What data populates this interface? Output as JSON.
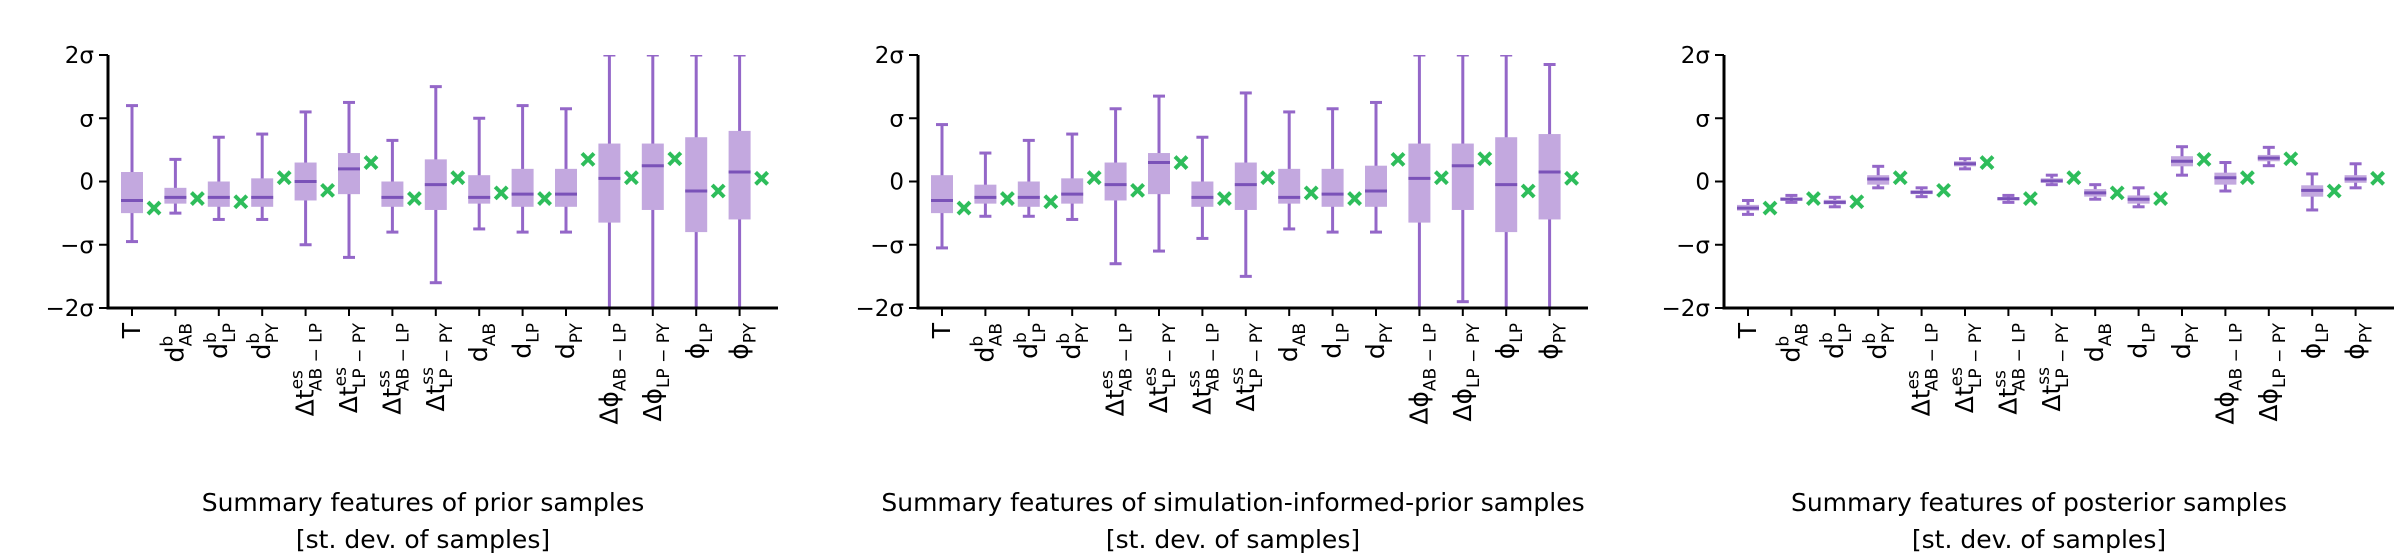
{
  "y_tick_labels": [
    "2σ",
    "σ",
    "0",
    "−σ",
    "−2σ"
  ],
  "x_tick_labels": [
    {
      "base": "T",
      "sup": "",
      "sub": ""
    },
    {
      "base": "d",
      "sup": "b",
      "sub": "AB"
    },
    {
      "base": "d",
      "sup": "b",
      "sub": "LP"
    },
    {
      "base": "d",
      "sup": "b",
      "sub": "PY"
    },
    {
      "base": "Δt",
      "sup": "es",
      "sub": "AB − LP"
    },
    {
      "base": "Δt",
      "sup": "es",
      "sub": "LP − PY"
    },
    {
      "base": "Δt",
      "sup": "ss",
      "sub": "AB − LP"
    },
    {
      "base": "Δt",
      "sup": "ss",
      "sub": "LP − PY"
    },
    {
      "base": "d",
      "sup": "",
      "sub": "AB"
    },
    {
      "base": "d",
      "sup": "",
      "sub": "LP"
    },
    {
      "base": "d",
      "sup": "",
      "sub": "PY"
    },
    {
      "base": "Δϕ",
      "sup": "",
      "sub": "AB − LP"
    },
    {
      "base": "Δϕ",
      "sup": "",
      "sub": "LP − PY"
    },
    {
      "base": "ϕ",
      "sup": "",
      "sub": "LP"
    },
    {
      "base": "ϕ",
      "sup": "",
      "sub": "PY"
    }
  ],
  "colors": {
    "box_fill": "#c3a8df",
    "whisker": "#9467c8",
    "median": "#7a52b8",
    "marker": "#2ebd5b",
    "axis": "#000000",
    "text": "#000000"
  },
  "chart_data": [
    {
      "type": "box",
      "title": "Summary features of prior samples",
      "subtitle": "[st. dev. of samples]",
      "ylim": [
        -2,
        2
      ],
      "whisker_low": [
        -0.95,
        -0.5,
        -0.6,
        -0.6,
        -1.0,
        -1.2,
        -0.8,
        -1.6,
        -0.75,
        -0.8,
        -0.8,
        -2.0,
        -2.0,
        -2.0,
        -2.0
      ],
      "q1": [
        -0.5,
        -0.35,
        -0.4,
        -0.4,
        -0.3,
        -0.2,
        -0.4,
        -0.45,
        -0.35,
        -0.4,
        -0.4,
        -0.65,
        -0.45,
        -0.8,
        -0.6
      ],
      "median": [
        -0.3,
        -0.25,
        -0.25,
        -0.25,
        0.0,
        0.2,
        -0.25,
        -0.05,
        -0.25,
        -0.2,
        -0.2,
        0.05,
        0.25,
        -0.15,
        0.15
      ],
      "q3": [
        0.15,
        -0.1,
        0.0,
        0.05,
        0.3,
        0.45,
        0.0,
        0.35,
        0.1,
        0.2,
        0.2,
        0.6,
        0.6,
        0.7,
        0.8
      ],
      "whisker_high": [
        1.2,
        0.35,
        0.7,
        0.75,
        1.1,
        1.25,
        0.65,
        1.5,
        1.0,
        1.2,
        1.15,
        2.0,
        2.0,
        2.0,
        2.0
      ],
      "observed": [
        -0.42,
        -0.27,
        -0.32,
        0.06,
        -0.14,
        0.3,
        -0.27,
        0.06,
        -0.18,
        -0.27,
        0.35,
        0.06,
        0.36,
        -0.15,
        0.05
      ]
    },
    {
      "type": "box",
      "title": "Summary features of simulation-informed-prior samples",
      "subtitle": "[st. dev. of samples]",
      "ylim": [
        -2,
        2
      ],
      "whisker_low": [
        -1.05,
        -0.55,
        -0.55,
        -0.6,
        -1.3,
        -1.1,
        -0.9,
        -1.5,
        -0.75,
        -0.8,
        -0.8,
        -2.0,
        -1.9,
        -2.0,
        -2.0
      ],
      "q1": [
        -0.5,
        -0.35,
        -0.4,
        -0.35,
        -0.3,
        -0.2,
        -0.4,
        -0.45,
        -0.35,
        -0.4,
        -0.4,
        -0.65,
        -0.45,
        -0.8,
        -0.6
      ],
      "median": [
        -0.3,
        -0.25,
        -0.25,
        -0.2,
        -0.05,
        0.3,
        -0.25,
        -0.05,
        -0.25,
        -0.2,
        -0.15,
        0.05,
        0.25,
        -0.05,
        0.15
      ],
      "q3": [
        0.1,
        -0.05,
        0.0,
        0.05,
        0.3,
        0.45,
        0.0,
        0.3,
        0.2,
        0.2,
        0.25,
        0.6,
        0.6,
        0.7,
        0.75
      ],
      "whisker_high": [
        0.9,
        0.45,
        0.65,
        0.75,
        1.15,
        1.35,
        0.7,
        1.4,
        1.1,
        1.15,
        1.25,
        2.0,
        2.0,
        2.0,
        1.85
      ],
      "observed": [
        -0.42,
        -0.27,
        -0.32,
        0.06,
        -0.14,
        0.3,
        -0.27,
        0.06,
        -0.18,
        -0.27,
        0.35,
        0.06,
        0.36,
        -0.15,
        0.05
      ]
    },
    {
      "type": "box",
      "title": "Summary features of posterior samples",
      "subtitle": "[st. dev. of samples]",
      "ylim": [
        -2,
        2
      ],
      "whisker_low": [
        -0.52,
        -0.33,
        -0.4,
        -0.1,
        -0.24,
        0.2,
        -0.33,
        -0.05,
        -0.28,
        -0.4,
        0.1,
        -0.15,
        0.25,
        -0.45,
        -0.1
      ],
      "q1": [
        -0.46,
        -0.3,
        -0.36,
        -0.05,
        -0.2,
        0.24,
        -0.3,
        -0.02,
        -0.24,
        -0.35,
        0.24,
        -0.05,
        0.32,
        -0.24,
        -0.02
      ],
      "median": [
        -0.42,
        -0.28,
        -0.33,
        0.04,
        -0.17,
        0.28,
        -0.27,
        0.01,
        -0.18,
        -0.28,
        0.32,
        0.06,
        0.37,
        -0.14,
        0.04
      ],
      "q3": [
        -0.37,
        -0.25,
        -0.29,
        0.1,
        -0.14,
        0.32,
        -0.25,
        0.05,
        -0.12,
        -0.22,
        0.4,
        0.14,
        0.42,
        -0.06,
        0.1
      ],
      "whisker_high": [
        -0.3,
        -0.22,
        -0.25,
        0.24,
        -0.1,
        0.36,
        -0.22,
        0.1,
        -0.05,
        -0.1,
        0.55,
        0.3,
        0.54,
        0.12,
        0.28
      ],
      "observed": [
        -0.42,
        -0.27,
        -0.32,
        0.06,
        -0.14,
        0.3,
        -0.27,
        0.06,
        -0.18,
        -0.27,
        0.35,
        0.06,
        0.36,
        -0.15,
        0.05
      ]
    }
  ]
}
